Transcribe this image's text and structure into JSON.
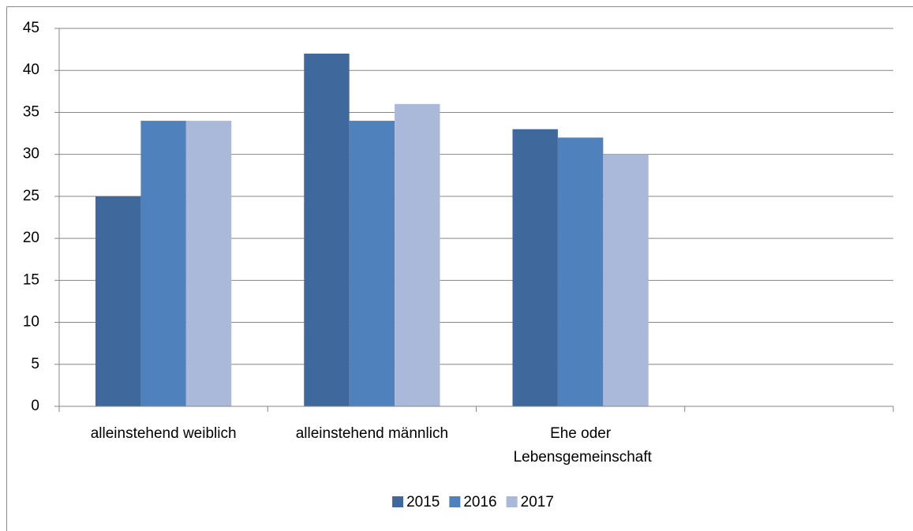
{
  "chart_data": {
    "type": "bar",
    "categories": [
      "alleinstehend weiblich",
      "alleinstehend männlich",
      "Ehe oder Lebensgemeinschaft",
      null
    ],
    "series": [
      {
        "name": "2015",
        "color": "#3f689c",
        "values": [
          25,
          42,
          33,
          null
        ]
      },
      {
        "name": "2016",
        "color": "#4f81bd",
        "values": [
          34,
          34,
          32,
          null
        ]
      },
      {
        "name": "2017",
        "color": "#aab9d9",
        "values": [
          34,
          36,
          30,
          null
        ]
      }
    ],
    "ylim": [
      0,
      45
    ],
    "yticks": [
      0,
      5,
      10,
      15,
      20,
      25,
      30,
      35,
      40,
      45
    ],
    "grid": true,
    "legend": "bottom"
  }
}
